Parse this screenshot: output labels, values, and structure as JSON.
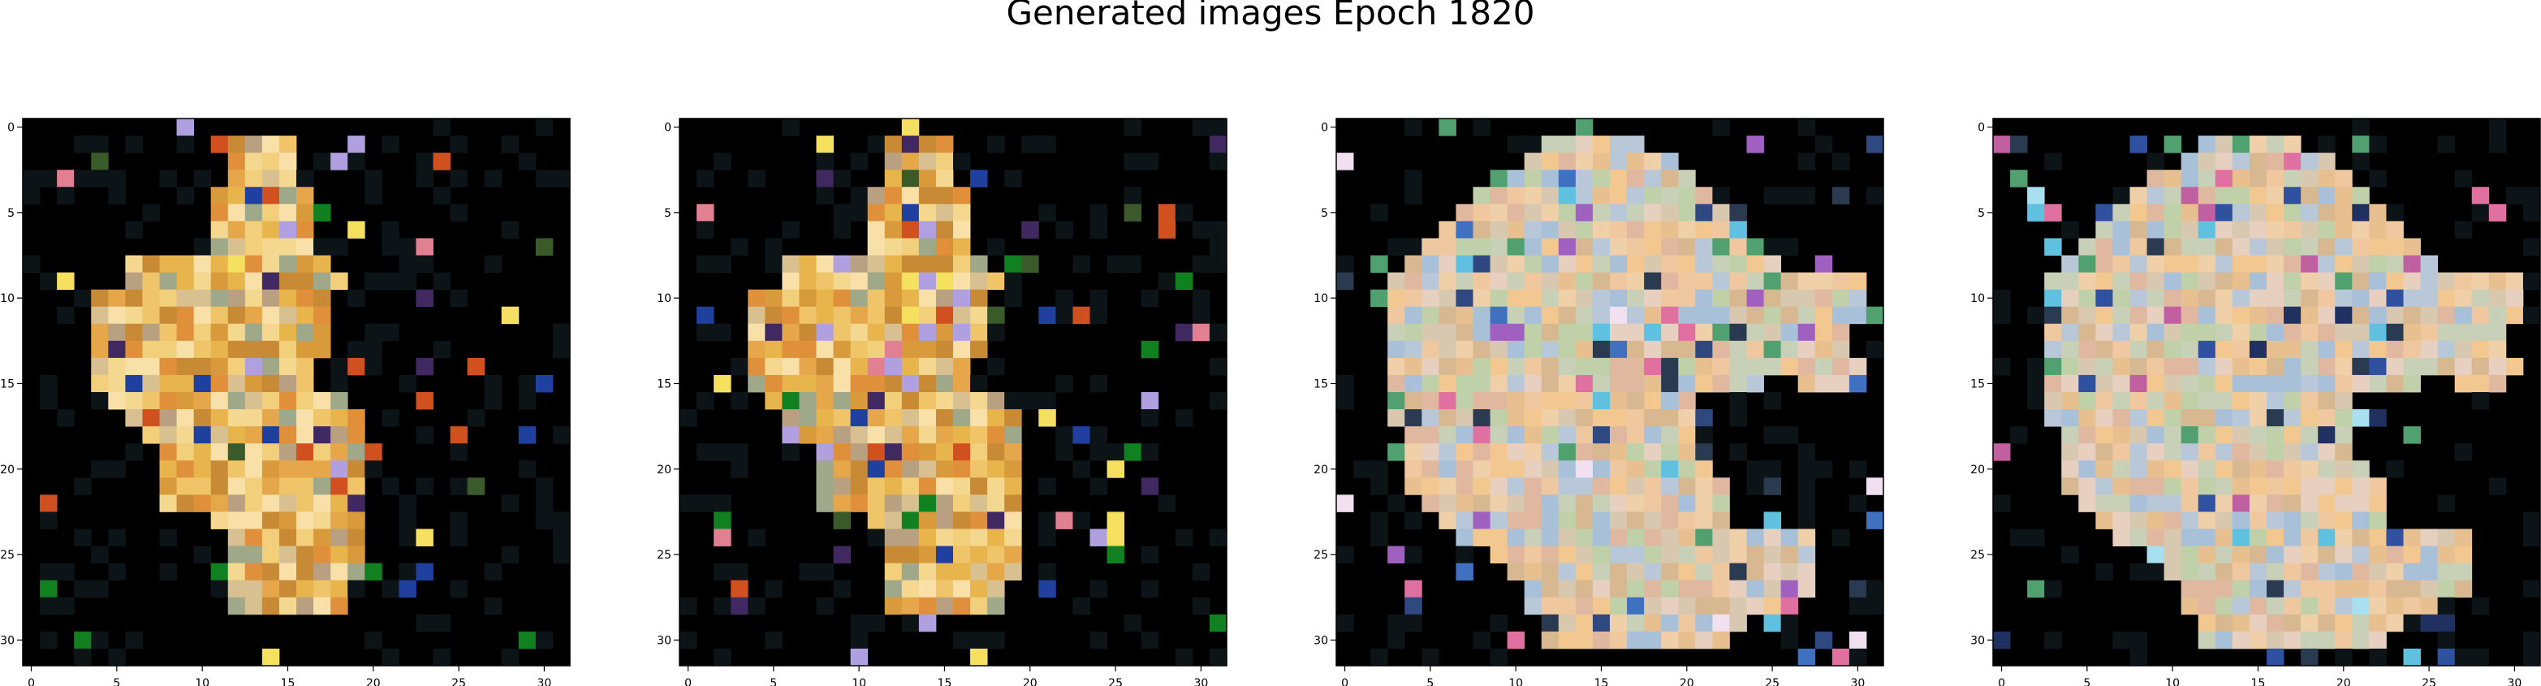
{
  "title": "Generated images Epoch 1820",
  "chart_data": [
    {
      "type": "heatmap",
      "panel": 1,
      "x_ticks": [
        0,
        5,
        10,
        15,
        20,
        25,
        30
      ],
      "y_ticks": [
        0,
        5,
        10,
        15,
        20,
        25,
        30
      ],
      "xlim": [
        -0.5,
        31.5
      ],
      "ylim": [
        31.5,
        -0.5
      ],
      "grid_size": [
        32,
        32
      ],
      "background": "#000000",
      "palette": [
        "#e8b54d",
        "#f0c468",
        "#d99a3c",
        "#f5d890",
        "#c98a35",
        "#e6a64a",
        "#f2cf7a",
        "#b8a080",
        "#d8c090",
        "#9fa888",
        "#e0903a",
        "#f8e0a8"
      ],
      "accent_colors": [
        "#2040a0",
        "#3a5a2a",
        "#d05020",
        "#f5e060",
        "#b0a0e0",
        "#e08090",
        "#108020",
        "#402860"
      ]
    },
    {
      "type": "heatmap",
      "panel": 2,
      "x_ticks": [
        0,
        5,
        10,
        15,
        20,
        25,
        30
      ],
      "y_ticks": [
        0,
        5,
        10,
        15,
        20,
        25,
        30
      ],
      "xlim": [
        -0.5,
        31.5
      ],
      "ylim": [
        31.5,
        -0.5
      ],
      "grid_size": [
        32,
        32
      ],
      "background": "#000000",
      "palette": [
        "#e8b54d",
        "#f0c468",
        "#d99a3c",
        "#f5d890",
        "#c98a35",
        "#e6a64a",
        "#f2cf7a",
        "#b8a080",
        "#d8c090",
        "#9fa888",
        "#e0903a",
        "#f8e0a8"
      ],
      "accent_colors": [
        "#2040a0",
        "#3a5a2a",
        "#d05020",
        "#f5e060",
        "#b0a0e0",
        "#e08090",
        "#108020",
        "#402860"
      ]
    },
    {
      "type": "heatmap",
      "panel": 3,
      "x_ticks": [
        0,
        5,
        10,
        15,
        20,
        25,
        30
      ],
      "y_ticks": [
        0,
        5,
        10,
        15,
        20,
        25,
        30
      ],
      "xlim": [
        -0.5,
        31.5
      ],
      "ylim": [
        31.5,
        -0.5
      ],
      "grid_size": [
        32,
        32
      ],
      "background": "#000000",
      "palette": [
        "#f0c8a0",
        "#e8c090",
        "#d8c8b0",
        "#c8d0b8",
        "#f0d0a8",
        "#e0b8a0",
        "#b8c8d8",
        "#a8c0d8",
        "#f2c890",
        "#e8d0c0",
        "#c0d0a8",
        "#d8b890"
      ],
      "accent_colors": [
        "#60c0e0",
        "#a060c0",
        "#4070c0",
        "#e070a0",
        "#50a070",
        "#304880",
        "#f0e0f0",
        "#2a3a50"
      ]
    },
    {
      "type": "heatmap",
      "panel": 4,
      "x_ticks": [
        0,
        5,
        10,
        15,
        20,
        25,
        30
      ],
      "y_ticks": [
        0,
        5,
        10,
        15,
        20,
        25,
        30
      ],
      "xlim": [
        -0.5,
        31.5
      ],
      "ylim": [
        31.5,
        -0.5
      ],
      "grid_size": [
        32,
        32
      ],
      "background": "#000000",
      "palette": [
        "#f0c8a0",
        "#e8c090",
        "#d8c8b0",
        "#c8d0b8",
        "#f0d0a8",
        "#e0b8a0",
        "#b8c8d8",
        "#a8c0d8",
        "#f2c890",
        "#e8d0c0",
        "#c0d0a8",
        "#d8b890"
      ],
      "accent_colors": [
        "#60c0e0",
        "#c060a0",
        "#3050a0",
        "#e070a0",
        "#50a070",
        "#203060",
        "#a8e0f0",
        "#2a3a50"
      ]
    }
  ]
}
